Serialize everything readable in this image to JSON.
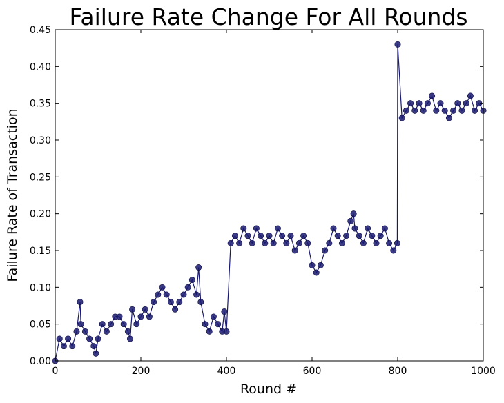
{
  "chart_data": {
    "type": "line",
    "title": "Failure Rate Change For All Rounds",
    "xlabel": "Round #",
    "ylabel": "Failure Rate of Transaction",
    "xlim": [
      0,
      1000
    ],
    "ylim": [
      0,
      0.45
    ],
    "xticks": [
      0,
      200,
      400,
      600,
      800,
      1000
    ],
    "yticks": [
      0.0,
      0.05,
      0.1,
      0.15,
      0.2,
      0.25,
      0.3,
      0.35,
      0.4,
      0.45
    ],
    "ytick_labels": [
      "0.00",
      "0.05",
      "0.10",
      "0.15",
      "0.20",
      "0.25",
      "0.30",
      "0.35",
      "0.40",
      "0.45"
    ],
    "grid": false,
    "marker": "circle",
    "line_color": "#191970",
    "marker_color": "#191970",
    "series": [
      {
        "x": [
          0,
          10,
          20,
          30,
          40,
          50,
          58,
          60,
          70,
          80,
          90,
          95,
          100,
          110,
          120,
          130,
          140,
          150,
          160,
          170,
          175,
          180,
          190,
          200,
          210,
          220,
          230,
          240,
          250,
          260,
          270,
          280,
          290,
          300,
          310,
          320,
          330,
          335,
          340,
          350,
          360,
          370,
          380,
          390,
          395,
          400,
          410,
          420,
          430,
          440,
          450,
          460,
          470,
          480,
          490,
          500,
          510,
          520,
          530,
          540,
          550,
          560,
          570,
          580,
          590,
          600,
          610,
          620,
          630,
          640,
          650,
          660,
          670,
          680,
          690,
          697,
          700,
          710,
          720,
          730,
          740,
          750,
          760,
          770,
          780,
          790,
          799,
          800,
          810,
          820,
          830,
          840,
          850,
          860,
          870,
          880,
          890,
          900,
          910,
          920,
          930,
          940,
          950,
          960,
          970,
          980,
          990,
          1000
        ],
        "y": [
          0.0,
          0.03,
          0.02,
          0.03,
          0.02,
          0.04,
          0.08,
          0.05,
          0.04,
          0.03,
          0.02,
          0.01,
          0.03,
          0.05,
          0.04,
          0.05,
          0.06,
          0.06,
          0.05,
          0.04,
          0.03,
          0.07,
          0.05,
          0.06,
          0.07,
          0.06,
          0.08,
          0.09,
          0.1,
          0.09,
          0.08,
          0.07,
          0.08,
          0.09,
          0.1,
          0.11,
          0.09,
          0.127,
          0.08,
          0.05,
          0.04,
          0.06,
          0.05,
          0.04,
          0.067,
          0.04,
          0.16,
          0.17,
          0.16,
          0.18,
          0.17,
          0.16,
          0.18,
          0.17,
          0.16,
          0.17,
          0.16,
          0.18,
          0.17,
          0.16,
          0.17,
          0.15,
          0.16,
          0.17,
          0.16,
          0.13,
          0.12,
          0.13,
          0.15,
          0.16,
          0.18,
          0.17,
          0.16,
          0.17,
          0.19,
          0.2,
          0.18,
          0.17,
          0.16,
          0.18,
          0.17,
          0.16,
          0.17,
          0.18,
          0.16,
          0.15,
          0.16,
          0.43,
          0.33,
          0.34,
          0.35,
          0.34,
          0.35,
          0.34,
          0.35,
          0.36,
          0.34,
          0.35,
          0.34,
          0.33,
          0.34,
          0.35,
          0.34,
          0.35,
          0.36,
          0.34,
          0.35,
          0.34
        ]
      }
    ]
  }
}
